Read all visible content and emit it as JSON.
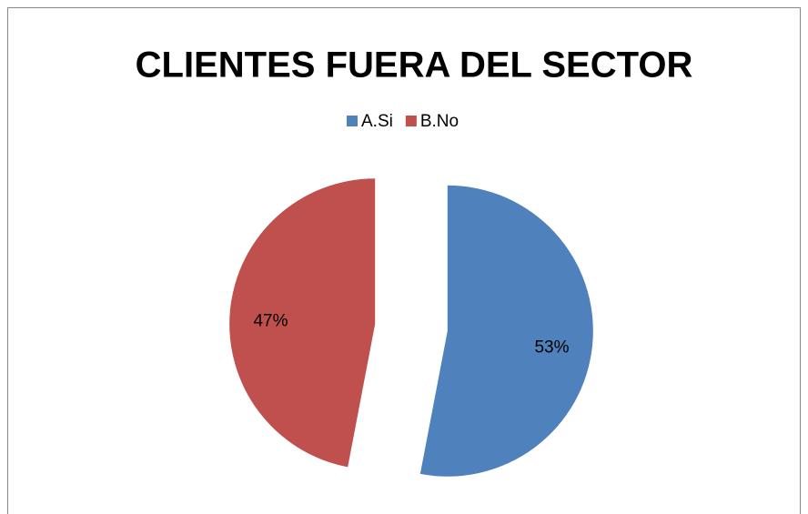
{
  "chart_data": {
    "type": "pie",
    "title": "CLIENTES FUERA DEL SECTOR",
    "categories": [
      "A.Si",
      "B.No"
    ],
    "values": [
      53,
      47
    ],
    "value_labels": [
      "53%",
      "47%"
    ],
    "colors": [
      "#4f81bd",
      "#c0504d"
    ],
    "legend": "top",
    "exploded": true
  }
}
